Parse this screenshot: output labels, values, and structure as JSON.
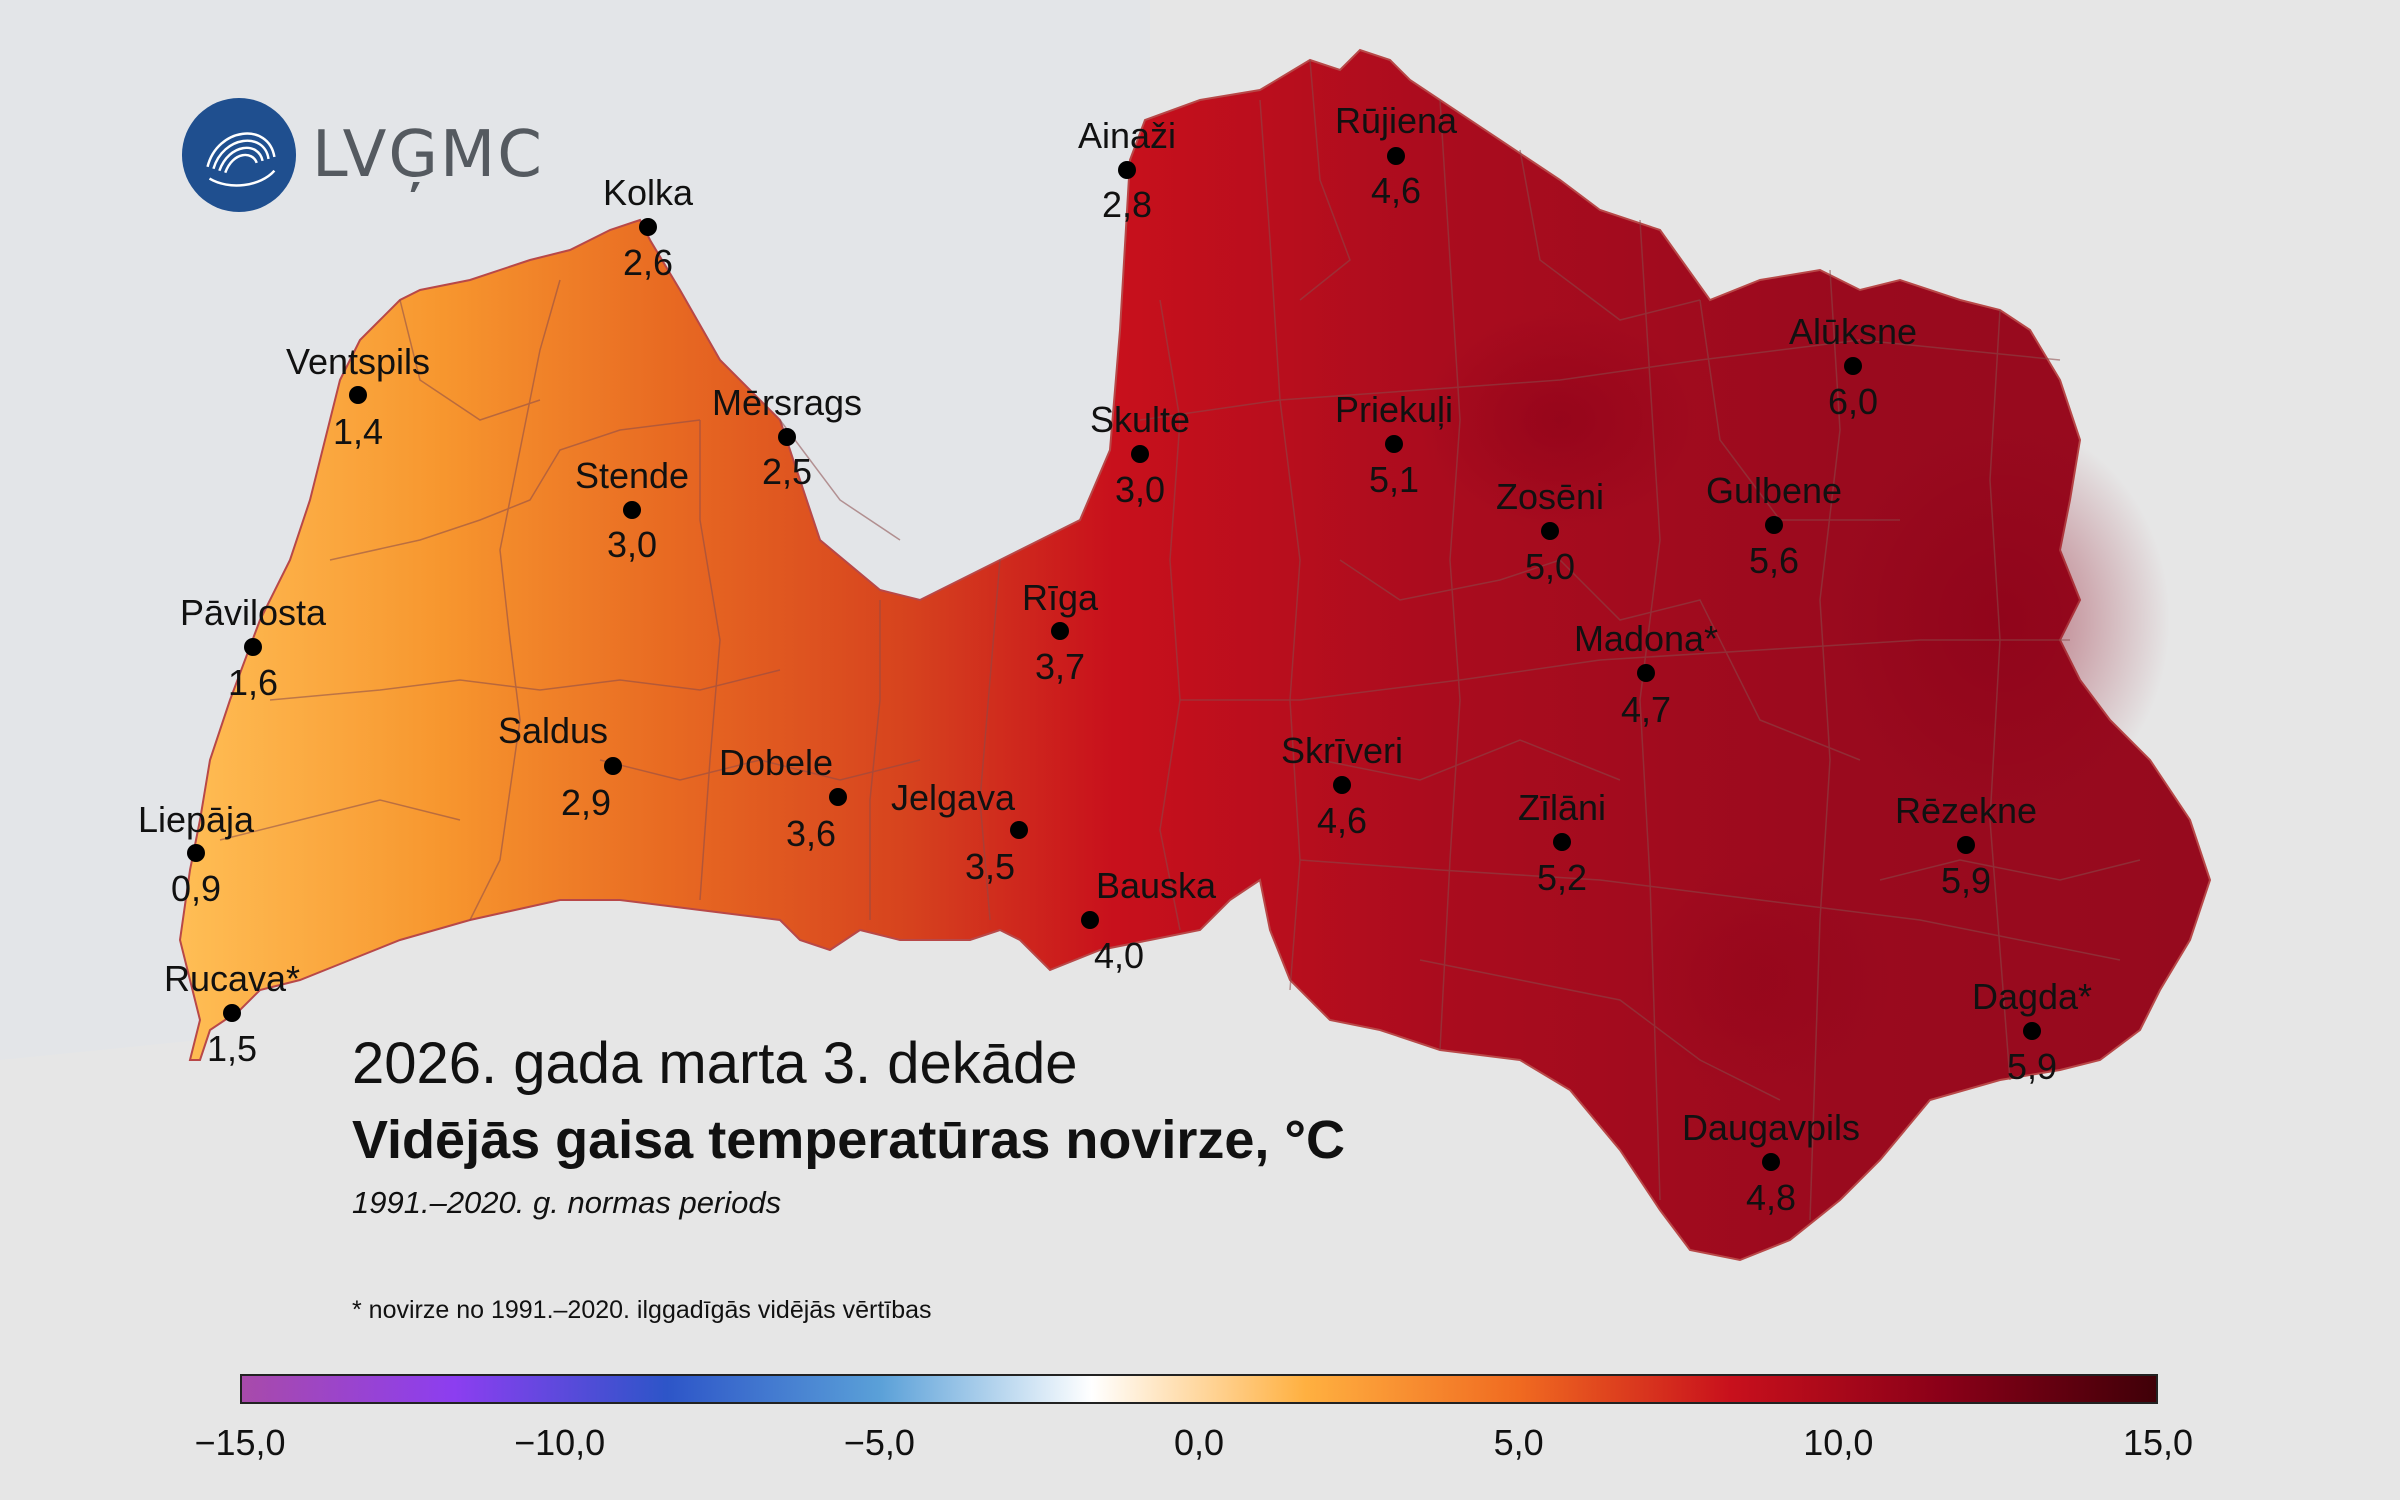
{
  "logo": {
    "text": "LVĢMC",
    "icon": "lvgmc-wave-logo"
  },
  "title": {
    "period": "2026. gada marta 3. dekāde",
    "main": "Vidējās gaisa temperatūras novirze, °C",
    "subtitle": "1991.–2020. g. normas periods"
  },
  "note": "* novirze no 1991.–2020. ilggadīgās vidējās vērtības",
  "legend": {
    "ticks": [
      "−15,0",
      "−10,0",
      "−5,0",
      "0,0",
      "5,0",
      "10,0",
      "15,0"
    ],
    "range": [
      -15,
      15
    ],
    "colors": [
      "#a84aaa",
      "#8c3ef0",
      "#2d55c8",
      "#5aa0d8",
      "#ffffff",
      "#ffb040",
      "#f06a20",
      "#c8101c",
      "#8a0018",
      "#400008"
    ]
  },
  "stations": [
    {
      "name": "Kolka",
      "value": "2,6"
    },
    {
      "name": "Ventspils",
      "value": "1,4"
    },
    {
      "name": "Mērsrags",
      "value": "2,5"
    },
    {
      "name": "Stende",
      "value": "3,0"
    },
    {
      "name": "Pāvilosta",
      "value": "1,6"
    },
    {
      "name": "Saldus",
      "value": "2,9"
    },
    {
      "name": "Dobele",
      "value": "3,6"
    },
    {
      "name": "Jelgava",
      "value": "3,5"
    },
    {
      "name": "Liepāja",
      "value": "0,9"
    },
    {
      "name": "Rucava*",
      "value": "1,5"
    },
    {
      "name": "Ainaži",
      "value": "2,8"
    },
    {
      "name": "Rūjiena",
      "value": "4,6"
    },
    {
      "name": "Skulte",
      "value": "3,0"
    },
    {
      "name": "Rīga",
      "value": "3,7"
    },
    {
      "name": "Bauska",
      "value": "4,0"
    },
    {
      "name": "Priekuļi",
      "value": "5,1"
    },
    {
      "name": "Alūksne",
      "value": "6,0"
    },
    {
      "name": "Zosēni",
      "value": "5,0"
    },
    {
      "name": "Gulbene",
      "value": "5,6"
    },
    {
      "name": "Madona*",
      "value": "4,7"
    },
    {
      "name": "Skrīveri",
      "value": "4,6"
    },
    {
      "name": "Zīlāni",
      "value": "5,2"
    },
    {
      "name": "Rēzekne",
      "value": "5,9"
    },
    {
      "name": "Dagda*",
      "value": "5,9"
    },
    {
      "name": "Daugavpils",
      "value": "4,8"
    }
  ]
}
